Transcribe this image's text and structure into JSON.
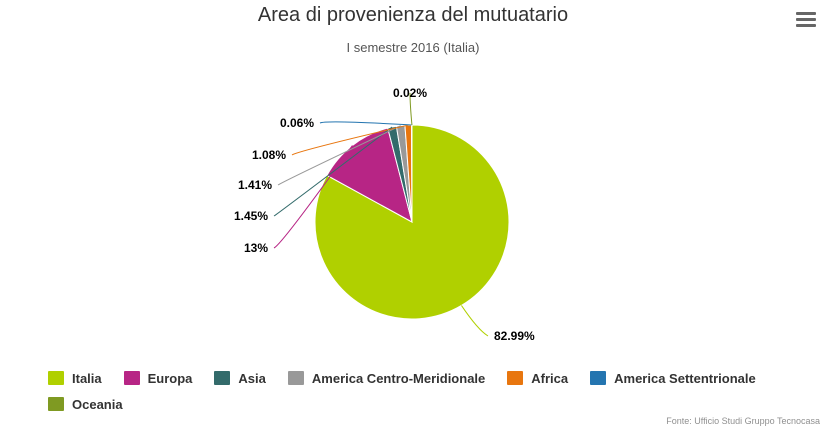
{
  "chart_data": {
    "type": "pie",
    "title": "Area di provenienza del mutuatario",
    "subtitle": "I semestre 2016 (Italia)",
    "slices": [
      {
        "name": "Italia",
        "value": 82.99,
        "label": "82.99%",
        "color": "#b0d000"
      },
      {
        "name": "Europa",
        "value": 13,
        "label": "13%",
        "color": "#b72585"
      },
      {
        "name": "Asia",
        "value": 1.45,
        "label": "1.45%",
        "color": "#336b6b"
      },
      {
        "name": "America Centro-Meridionale",
        "value": 1.41,
        "label": "1.41%",
        "color": "#999999"
      },
      {
        "name": "Africa",
        "value": 1.08,
        "label": "1.08%",
        "color": "#e8760f"
      },
      {
        "name": "America Settentrionale",
        "value": 0.06,
        "label": "0.06%",
        "color": "#2475b0"
      },
      {
        "name": "Oceania",
        "value": 0.02,
        "label": "0.02%",
        "color": "#7f9a22"
      }
    ],
    "legend_position": "bottom"
  },
  "credits": "Fonte: Ufficio Studi Gruppo Tecnocasa",
  "menu_icon": "hamburger-menu-icon"
}
